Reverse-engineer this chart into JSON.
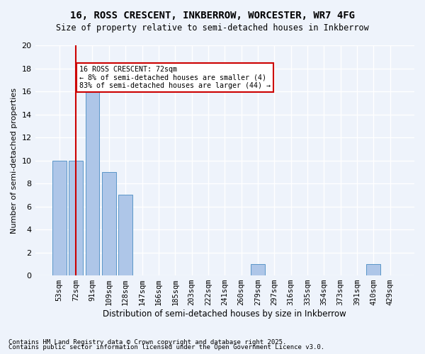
{
  "title1": "16, ROSS CRESCENT, INKBERROW, WORCESTER, WR7 4FG",
  "title2": "Size of property relative to semi-detached houses in Inkberrow",
  "xlabel": "Distribution of semi-detached houses by size in Inkberrow",
  "ylabel": "Number of semi-detached properties",
  "categories": [
    "53sqm",
    "72sqm",
    "91sqm",
    "109sqm",
    "128sqm",
    "147sqm",
    "166sqm",
    "185sqm",
    "203sqm",
    "222sqm",
    "241sqm",
    "260sqm",
    "279sqm",
    "297sqm",
    "316sqm",
    "335sqm",
    "354sqm",
    "373sqm",
    "391sqm",
    "410sqm",
    "429sqm"
  ],
  "values": [
    10,
    10,
    16,
    9,
    7,
    0,
    0,
    0,
    0,
    0,
    0,
    0,
    1,
    0,
    0,
    0,
    0,
    0,
    0,
    1,
    0
  ],
  "bar_color": "#aec6e8",
  "bar_edge_color": "#5a96c8",
  "highlight_index": 1,
  "highlight_line_x_label": "72sqm",
  "annotation_title": "16 ROSS CRESCENT: 72sqm",
  "annotation_line1": "← 8% of semi-detached houses are smaller (4)",
  "annotation_line2": "83% of semi-detached houses are larger (44) →",
  "annotation_box_color": "#ffffff",
  "annotation_box_edge": "#cc0000",
  "vline_color": "#cc0000",
  "ylim": [
    0,
    20
  ],
  "yticks": [
    0,
    2,
    4,
    6,
    8,
    10,
    12,
    14,
    16,
    18,
    20
  ],
  "background_color": "#eef3fb",
  "grid_color": "#ffffff",
  "footnote1": "Contains HM Land Registry data © Crown copyright and database right 2025.",
  "footnote2": "Contains public sector information licensed under the Open Government Licence v3.0."
}
